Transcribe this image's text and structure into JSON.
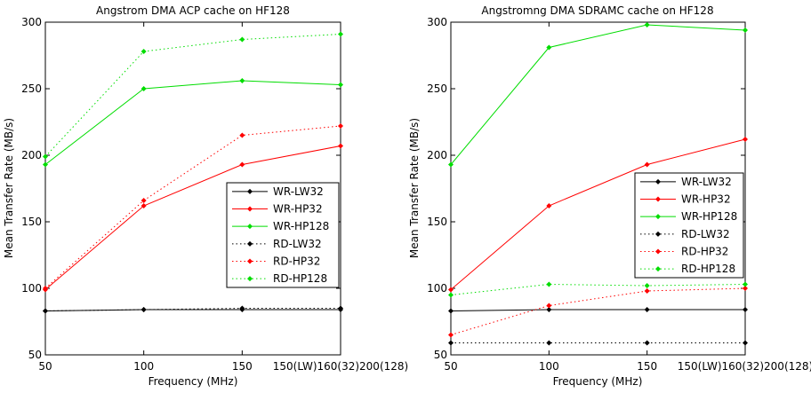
{
  "colors": {
    "black": "#000000",
    "red": "#ff0000",
    "green": "#00dd00"
  },
  "chart_data": [
    {
      "type": "line",
      "title": "Angstrom DMA ACP cache on HF128",
      "xlabel": "Frequency (MHz)",
      "ylabel": "Mean Transfer Rate (MB/s)",
      "x": [
        50,
        100,
        150,
        200
      ],
      "x_tick_labels": [
        "50",
        "100",
        "150",
        "150(LW)160(32)200(128)"
      ],
      "ylim": [
        50,
        300
      ],
      "y_ticks": [
        50,
        100,
        150,
        200,
        250,
        300
      ],
      "grid": false,
      "legend_position": "right-middle",
      "series": [
        {
          "name": "WR-LW32",
          "color": "#000000",
          "dashed": false,
          "values": [
            83,
            84,
            84,
            84
          ]
        },
        {
          "name": "WR-HP32",
          "color": "#ff0000",
          "dashed": false,
          "values": [
            99,
            162,
            193,
            207
          ]
        },
        {
          "name": "WR-HP128",
          "color": "#00dd00",
          "dashed": false,
          "values": [
            193,
            250,
            256,
            253
          ]
        },
        {
          "name": "RD-LW32",
          "color": "#000000",
          "dashed": true,
          "values": [
            83,
            84,
            85,
            85
          ]
        },
        {
          "name": "RD-HP32",
          "color": "#ff0000",
          "dashed": true,
          "values": [
            100,
            166,
            215,
            222
          ]
        },
        {
          "name": "RD-HP128",
          "color": "#00dd00",
          "dashed": true,
          "values": [
            199,
            278,
            287,
            291
          ]
        }
      ]
    },
    {
      "type": "line",
      "title": "Angstromng DMA SDRAMC cache on HF128",
      "xlabel": "Frequency (MHz)",
      "ylabel": "Mean Transfer Rate (MB/s)",
      "x": [
        50,
        100,
        150,
        200
      ],
      "x_tick_labels": [
        "50",
        "100",
        "150",
        "150(LW)160(32)200(128)"
      ],
      "ylim": [
        50,
        300
      ],
      "y_ticks": [
        50,
        100,
        150,
        200,
        250,
        300
      ],
      "grid": false,
      "legend_position": "right-middle",
      "series": [
        {
          "name": "WR-LW32",
          "color": "#000000",
          "dashed": false,
          "values": [
            83,
            84,
            84,
            84
          ]
        },
        {
          "name": "WR-HP32",
          "color": "#ff0000",
          "dashed": false,
          "values": [
            99,
            162,
            193,
            212
          ]
        },
        {
          "name": "WR-HP128",
          "color": "#00dd00",
          "dashed": false,
          "values": [
            193,
            281,
            298,
            294
          ]
        },
        {
          "name": "RD-LW32",
          "color": "#000000",
          "dashed": true,
          "values": [
            59,
            59,
            59,
            59
          ]
        },
        {
          "name": "RD-HP32",
          "color": "#ff0000",
          "dashed": true,
          "values": [
            65,
            87,
            98,
            100
          ]
        },
        {
          "name": "RD-HP128",
          "color": "#00dd00",
          "dashed": true,
          "values": [
            95,
            103,
            102,
            103
          ]
        }
      ]
    }
  ]
}
